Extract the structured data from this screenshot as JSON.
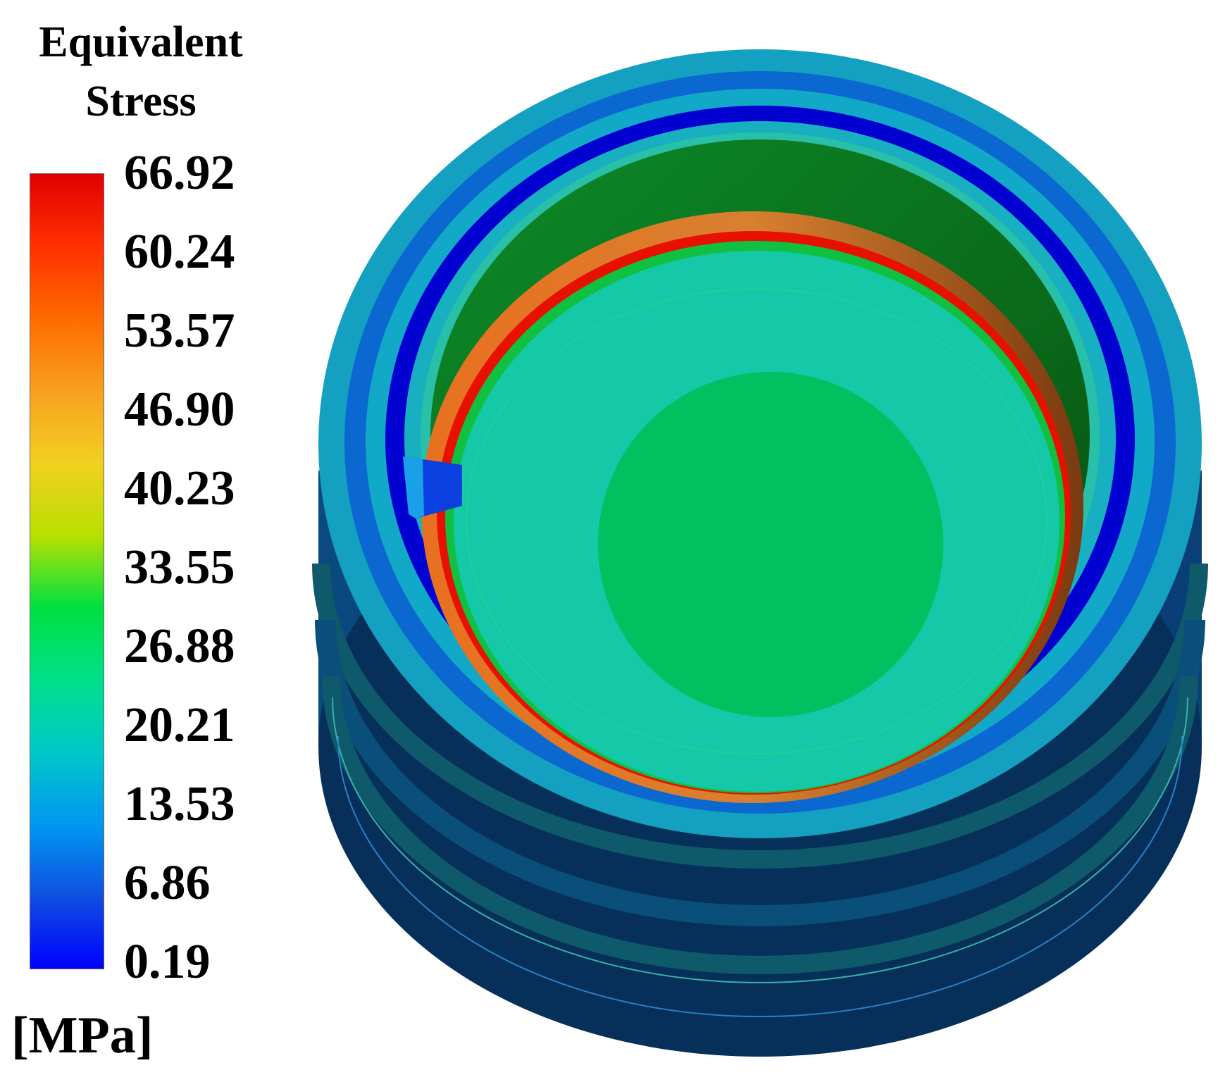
{
  "legend": {
    "title_line1": "Equivalent",
    "title_line2": "Stress",
    "unit": "[MPa]",
    "ticks": [
      "66.92",
      "60.24",
      "53.57",
      "46.90",
      "40.23",
      "33.55",
      "26.88",
      "20.21",
      "13.53",
      "6.86",
      "0.19"
    ],
    "min": 0.19,
    "max": 66.92,
    "gradient_colors": [
      "#e00000",
      "#ff3000",
      "#ff6a00",
      "#f8a020",
      "#f2d020",
      "#b8e000",
      "#00e040",
      "#00e08a",
      "#00c8c8",
      "#0098f0",
      "#1050e0",
      "#0000ff"
    ]
  },
  "model": {
    "description_colors": {
      "outer_dark": "#06305a",
      "rim_cyan": "#1aa8c8",
      "rim_blue": "#0000d8",
      "inner_wall_green": "#0a7a20",
      "floor_teal": "#10c8a8",
      "center_green": "#00c060",
      "hot_ring": "#e81000",
      "orange_band": "#e88020"
    }
  }
}
